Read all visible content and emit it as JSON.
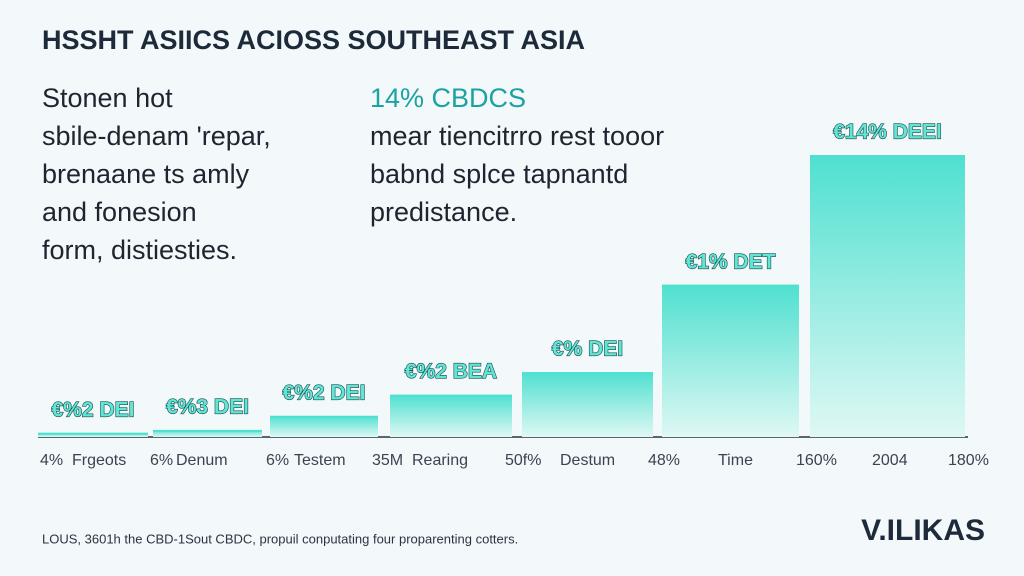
{
  "chart_data": {
    "type": "bar",
    "title": "HSSHT ASIICS ACIOSS SOUTHEAST ASIA",
    "paragraph": [
      "Stonen hot",
      "sbile-denam 'repar,",
      "brenaane ts amly",
      "and fonesion",
      "form, distiesties."
    ],
    "subheading": "14% CBDCS",
    "subparagraph": [
      "mear tiencitrro rest tooor",
      "babnd splce tapnantd",
      "predistance."
    ],
    "values": [
      1.5,
      2.5,
      7.5,
      15,
      23,
      54,
      100
    ],
    "annotations": [
      "€%2 DEI",
      "€%3 DEI",
      "€%2 DEI",
      "€%2 BEA",
      "€% DEI",
      "€1% DET",
      "€14% DEEI"
    ],
    "axis_labels": [
      "4%",
      "Frgeots",
      "6%",
      "Denum",
      "6%",
      "Testem",
      "35M",
      "Rearing",
      "50f%",
      "Destum",
      "48%",
      "Time",
      "160%",
      "2004",
      "180%"
    ],
    "ylim": [
      0,
      100
    ],
    "color": "#4fe0d0",
    "footnote": "LOUS, 3601h the CBD-1Sout CBDC, propuil conputating four proparenting cotters.",
    "logo": "V.ILIKAS"
  }
}
